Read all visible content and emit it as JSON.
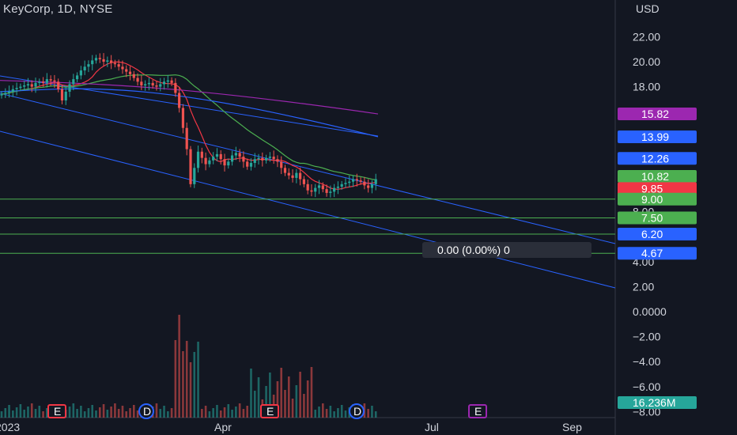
{
  "header": {
    "title": "KeyCorp, 1D, NYSE"
  },
  "currency": "USD",
  "colors": {
    "background": "#131722",
    "up": "#26a69a",
    "down": "#ef5350",
    "grid": "#2a2e39",
    "channel": "#2962ff",
    "ma_red": "#f23645",
    "ma_green": "#4caf50",
    "ma_purple": "#9c27b0",
    "ma_blue": "#2962ff",
    "hline": "#4caf50",
    "earnings": "#f23645",
    "dividend": "#2962ff",
    "event": "#9c27b0"
  },
  "price_axis": {
    "ticks": [
      "22.00",
      "20.00",
      "18.00",
      "8.00",
      "4.00",
      "2.00",
      "0.0000",
      "−2.00",
      "−4.00",
      "−6.00",
      "−8.00"
    ],
    "tick_values": [
      22,
      20,
      18,
      8,
      4,
      2,
      0,
      -2,
      -4,
      -6,
      -8
    ]
  },
  "price_tags": [
    {
      "label": "15.82",
      "value": 15.82,
      "color": "#9c27b0"
    },
    {
      "label": "13.99",
      "value": 13.99,
      "color": "#2962ff"
    },
    {
      "label": "12.26",
      "value": 12.26,
      "color": "#2962ff"
    },
    {
      "label": "10.82",
      "value": 10.82,
      "color": "#4caf50"
    },
    {
      "label": "9.85",
      "value": 9.85,
      "color": "#f23645"
    },
    {
      "label": "9.00",
      "value": 9.0,
      "color": "#4caf50"
    },
    {
      "label": "7.50",
      "value": 7.5,
      "color": "#4caf50"
    },
    {
      "label": "6.20",
      "value": 6.2,
      "color": "#2962ff"
    },
    {
      "label": "4.67",
      "value": 4.67,
      "color": "#2962ff"
    }
  ],
  "volume_tag": {
    "label": "16.236M",
    "color": "#26a69a"
  },
  "tooltip": {
    "label": "0.00 (0.00%) 0"
  },
  "time_axis": [
    "2023",
    "Apr",
    "Jul",
    "Sep"
  ],
  "events": [
    {
      "type": "earnings",
      "label": "E"
    },
    {
      "type": "dividend",
      "label": "D"
    },
    {
      "type": "earnings",
      "label": "E"
    },
    {
      "type": "dividend",
      "label": "D"
    },
    {
      "type": "event",
      "label": "E"
    }
  ],
  "chart_data": {
    "type": "candlestick",
    "horizontal_lines": [
      9.0,
      7.5,
      6.2,
      4.67
    ],
    "closes": [
      17.4,
      17.5,
      17.6,
      17.8,
      17.9,
      18.0,
      18.1,
      18.2,
      18.0,
      18.3,
      18.4,
      18.3,
      18.6,
      18.5,
      18.4,
      17.8,
      16.9,
      17.6,
      18.2,
      18.6,
      18.9,
      19.3,
      19.6,
      19.8,
      20.1,
      20.3,
      20.2,
      20.0,
      20.1,
      19.9,
      19.8,
      19.6,
      19.4,
      19.2,
      19.0,
      18.7,
      18.4,
      18.1,
      18.2,
      18.3,
      18.1,
      18.0,
      18.2,
      18.4,
      18.5,
      18.3,
      17.5,
      16.3,
      14.7,
      13.0,
      10.2,
      11.5,
      12.8,
      12.3,
      11.8,
      12.1,
      12.4,
      12.6,
      12.2,
      11.7,
      12.0,
      12.5,
      12.7,
      12.4,
      12.0,
      11.6,
      11.9,
      12.2,
      12.3,
      12.1,
      12.3,
      12.4,
      12.2,
      12.0,
      11.5,
      11.1,
      10.9,
      10.7,
      11.1,
      10.6,
      10.2,
      9.7,
      9.6,
      9.9,
      10.1,
      9.8,
      9.5,
      9.6,
      9.9,
      10.0,
      10.2,
      10.3,
      10.4,
      10.6,
      10.5,
      10.4,
      10.1,
      9.9,
      10.2,
      10.6
    ]
  }
}
